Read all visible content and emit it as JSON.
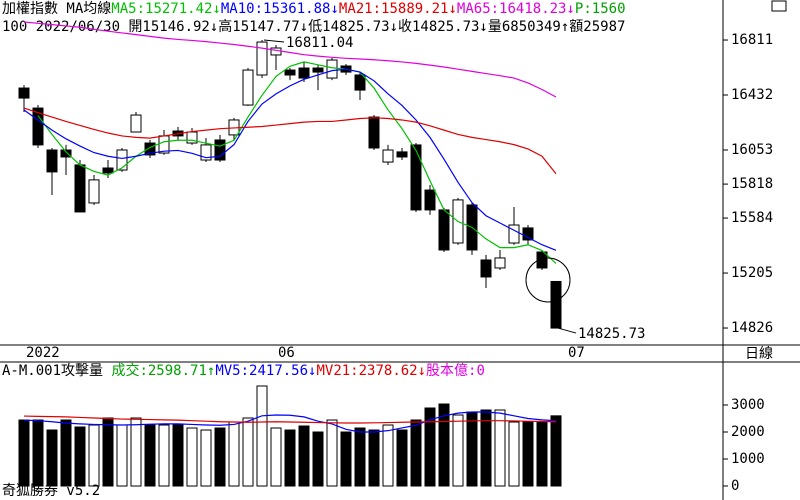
{
  "chart_data": [
    {
      "type": "candlestick",
      "title": "加權指數 MA均線",
      "subtitle": "100 2022/06/30 開15146.92↓高15147.77↓低14825.73↓收14825.73↓量6850349↑額25987",
      "extra_legend": "P:1560",
      "period": "日線",
      "next_period_label": "07",
      "max_label": "16811.04",
      "min_label": "14825.73",
      "categories": [
        "2022",
        null,
        null,
        null,
        null,
        null,
        null,
        null,
        null,
        null,
        null,
        null,
        null,
        null,
        null,
        null,
        null,
        null,
        "06",
        null,
        null,
        null,
        null,
        null,
        null,
        null,
        null,
        null,
        null,
        null,
        null,
        null,
        null,
        null,
        null,
        null,
        null,
        null,
        null
      ],
      "open": [
        16480,
        16342,
        16053,
        16053,
        15950,
        15688,
        15929,
        15915,
        16177,
        16101,
        16032,
        16184,
        16101,
        15984,
        16122,
        16157,
        16363,
        16570,
        16708,
        16604,
        16618,
        16618,
        16549,
        16632,
        16570,
        16280,
        15970,
        16040,
        16088,
        15777,
        15640,
        15412,
        15674,
        15295,
        15240,
        15412,
        15516,
        15350,
        15146.92
      ],
      "high": [
        16500,
        16363,
        16067,
        16088,
        15984,
        15881,
        15984,
        16067,
        16315,
        16122,
        16191,
        16212,
        16205,
        16136,
        16157,
        16274,
        16618,
        16811.04,
        16777,
        16618,
        16659,
        16639,
        16687,
        16646,
        16590,
        16294,
        16088,
        16067,
        16101,
        15812,
        15654,
        15723,
        15688,
        15330,
        15364,
        15660,
        15536,
        15364,
        15147.77
      ],
      "low": [
        16315,
        16067,
        15743,
        15881,
        15626,
        15674,
        15860,
        15902,
        16177,
        15998,
        16019,
        16122,
        16088,
        15970,
        15970,
        16122,
        16356,
        16549,
        16604,
        16535,
        16522,
        16466,
        16535,
        16570,
        16398,
        16053,
        15950,
        15984,
        15626,
        15606,
        15350,
        15399,
        15330,
        15102,
        15226,
        15399,
        15399,
        15226,
        14825.73
      ],
      "close": [
        16411,
        16088,
        15902,
        16005,
        15626,
        15847,
        15895,
        16053,
        16294,
        16019,
        16150,
        16150,
        16177,
        16088,
        15984,
        16260,
        16604,
        16797,
        16756,
        16570,
        16549,
        16590,
        16673,
        16590,
        16466,
        16067,
        16053,
        16005,
        15640,
        15640,
        15364,
        15709,
        15364,
        15178,
        15309,
        15536,
        15433,
        15240,
        14825.73
      ],
      "series": [
        {
          "name": "MA5:15271.42↓",
          "color": "#00c000",
          "values": [
            null,
            16290,
            16160,
            16040,
            15950,
            15905,
            15880,
            15930,
            16010,
            16070,
            16110,
            16120,
            16120,
            16100,
            16080,
            16120,
            16280,
            16430,
            16560,
            16630,
            16660,
            16640,
            16620,
            16610,
            16590,
            16480,
            16330,
            16200,
            16050,
            15840,
            15640,
            15560,
            15520,
            15440,
            15380,
            15380,
            15400,
            15360,
            15271.42
          ]
        },
        {
          "name": "MA10:15361.88↓",
          "color": "#0000ff",
          "values": [
            16329,
            16260,
            16190,
            16130,
            16080,
            16035,
            16010,
            15995,
            16010,
            16030,
            16045,
            16050,
            16030,
            16000,
            16010,
            16090,
            16250,
            16370,
            16440,
            16495,
            16540,
            16570,
            16600,
            16610,
            16590,
            16530,
            16440,
            16360,
            16260,
            16140,
            15990,
            15830,
            15690,
            15600,
            15550,
            15500,
            15450,
            15400,
            15361.88
          ]
        },
        {
          "name": "MA21:15889.21↓",
          "color": "#e00000",
          "values": [
            16342,
            16310,
            16280,
            16250,
            16222,
            16195,
            16170,
            16150,
            16140,
            16135,
            16150,
            16165,
            16180,
            16190,
            16200,
            16205,
            16210,
            16215,
            16225,
            16235,
            16245,
            16250,
            16250,
            16260,
            16270,
            16275,
            16270,
            16260,
            16245,
            16220,
            16190,
            16160,
            16140,
            16125,
            16110,
            16090,
            16060,
            16010,
            15889.21
          ]
        },
        {
          "name": "MA65:16418.23↓",
          "color": "#e000e0",
          "values": [
            16935,
            16926,
            16917,
            16908,
            16899,
            16885,
            16872,
            16860,
            16848,
            16836,
            16824,
            16815,
            16808,
            16800,
            16790,
            16780,
            16768,
            16755,
            16740,
            16725,
            16710,
            16700,
            16692,
            16685,
            16680,
            16675,
            16668,
            16660,
            16650,
            16638,
            16625,
            16610,
            16595,
            16580,
            16565,
            16549,
            16515,
            16470,
            16418.23
          ]
        }
      ],
      "ylim": [
        14709,
        16949
      ],
      "yticks": [
        14826,
        15205,
        15584,
        15818,
        16053,
        16432,
        16811
      ]
    },
    {
      "type": "bar",
      "title": "A-M.001攻擊量",
      "volume_label": "成交:2598.71↑",
      "capital_label": "股本億:0",
      "footer": "奇狐勝券 v5.2",
      "values": [
        2444,
        2444,
        2074,
        2444,
        2185,
        2259,
        2519,
        2259,
        2519,
        2259,
        2259,
        2259,
        2148,
        2074,
        2148,
        2370,
        2519,
        3704,
        2148,
        2074,
        2222,
        2000,
        2444,
        2000,
        2148,
        2074,
        2259,
        2074,
        2444,
        2889,
        3037,
        2630,
        2741,
        2815,
        2815,
        2370,
        2370,
        2370,
        2598.71
      ],
      "series": [
        {
          "name": "MV5:2417.56↓",
          "color": "#0000ff",
          "values": [
            2440,
            2420,
            2380,
            2330,
            2300,
            2280,
            2270,
            2260,
            2270,
            2290,
            2300,
            2300,
            2280,
            2260,
            2250,
            2280,
            2400,
            2600,
            2630,
            2620,
            2560,
            2400,
            2300,
            2100,
            2000,
            2000,
            2050,
            2150,
            2250,
            2450,
            2600,
            2700,
            2741,
            2741,
            2700,
            2600,
            2500,
            2450,
            2417.56
          ]
        },
        {
          "name": "MV21:2378.62↓",
          "color": "#e00000",
          "values": [
            2590,
            2580,
            2570,
            2560,
            2540,
            2520,
            2500,
            2480,
            2470,
            2460,
            2450,
            2440,
            2420,
            2400,
            2380,
            2370,
            2360,
            2370,
            2380,
            2370,
            2360,
            2350,
            2340,
            2333,
            2333,
            2340,
            2350,
            2360,
            2370,
            2380,
            2390,
            2400,
            2410,
            2420,
            2420,
            2410,
            2400,
            2390,
            2378.62
          ]
        }
      ],
      "ylim": [
        -407,
        3926
      ],
      "yticks": [
        0,
        1000,
        2000,
        3000
      ]
    }
  ]
}
